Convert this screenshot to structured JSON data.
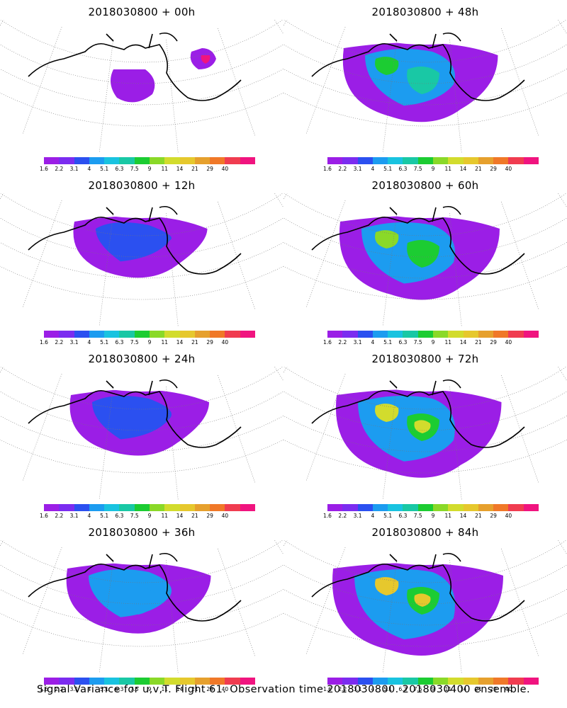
{
  "panels": [
    {
      "title": "2018030800 + 00h",
      "level": 0
    },
    {
      "title": "2018030800 + 48h",
      "level": 5
    },
    {
      "title": "2018030800 + 12h",
      "level": 1
    },
    {
      "title": "2018030800 + 60h",
      "level": 6
    },
    {
      "title": "2018030800 + 24h",
      "level": 2
    },
    {
      "title": "2018030800 + 72h",
      "level": 7
    },
    {
      "title": "2018030800 + 36h",
      "level": 3
    },
    {
      "title": "2018030800 + 84h",
      "level": 8
    }
  ],
  "colorbar": {
    "colors": [
      "#9b1ee6",
      "#7b2cf0",
      "#2b50f0",
      "#1c9cf0",
      "#19c3e0",
      "#19c8a5",
      "#1ccc32",
      "#8ad928",
      "#d2dc2d",
      "#e6c82d",
      "#e6a02d",
      "#f07828",
      "#f03c50",
      "#f0147f"
    ],
    "ticks": [
      "1.6",
      "2.2",
      "3.1",
      "4",
      "5.1",
      "6.3",
      "7.5",
      "9",
      "11",
      "14",
      "21",
      "29",
      "40"
    ]
  },
  "footer": "Signal Variance for u,v,T. Flight 61. Observation time 2018030800. 2018030400 ensemble."
}
